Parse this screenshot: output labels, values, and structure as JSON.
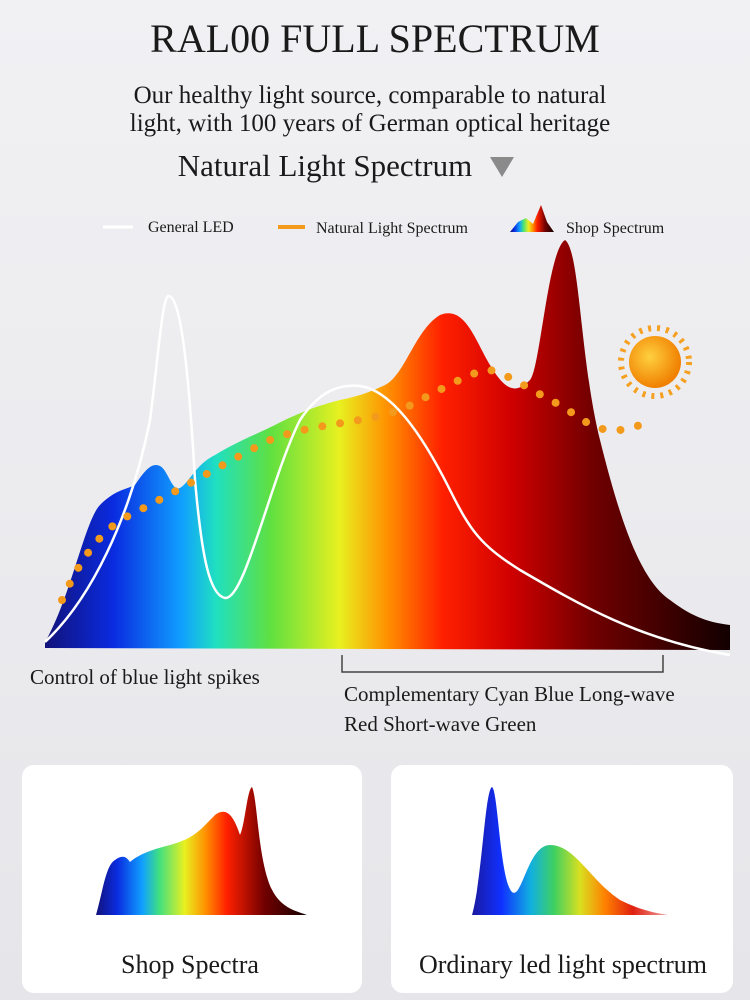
{
  "header": {
    "title": "RAL00 FULL SPECTRUM",
    "subtitle_lines": [
      "Our healthy light source, comparable to natural",
      "light, with 100 years of German optical heritage"
    ],
    "section": "Natural Light Spectrum"
  },
  "legend": [
    {
      "label": "General LED"
    },
    {
      "label": "Natural Light Spectrum"
    },
    {
      "label": "Shop Spectrum"
    }
  ],
  "annotations": [
    {
      "lines": [
        "Control of blue light spikes"
      ]
    },
    {
      "lines": [
        "Complementary Cyan Blue Long-wave",
        "Red Short-wave Green"
      ]
    }
  ],
  "cards": [
    {
      "label": "Shop Spectra"
    },
    {
      "label": "Ordinary led light spectrum"
    }
  ]
}
